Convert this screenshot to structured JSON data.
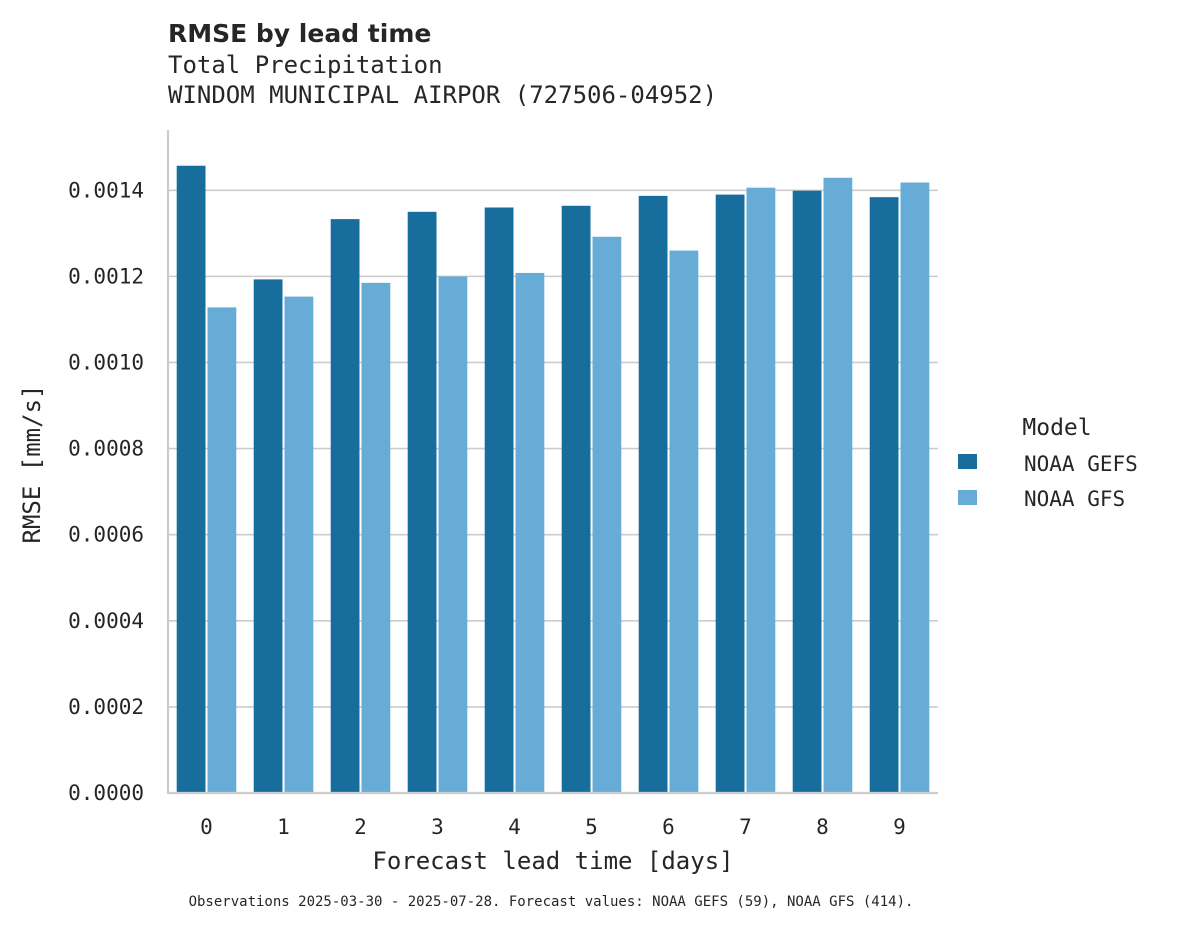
{
  "chart_data": {
    "type": "bar",
    "title": "RMSE by lead time",
    "subtitle_lines": [
      "Total Precipitation",
      "WINDOM MUNICIPAL AIRPOR (727506-04952)"
    ],
    "xlabel": "Forecast lead time [days]",
    "ylabel": "RMSE [mm/s]",
    "categories": [
      "0",
      "1",
      "2",
      "3",
      "4",
      "5",
      "6",
      "7",
      "8",
      "9"
    ],
    "ylim": [
      0,
      0.00154
    ],
    "yticks": [
      0.0,
      0.0002,
      0.0004,
      0.0006,
      0.0008,
      0.001,
      0.0012,
      0.0014
    ],
    "ytick_labels": [
      "0.0000",
      "0.0002",
      "0.0004",
      "0.0006",
      "0.0008",
      "0.0010",
      "0.0012",
      "0.0014"
    ],
    "grid": true,
    "legend": {
      "title": "Model",
      "placement": "right"
    },
    "series": [
      {
        "name": "NOAA GEFS",
        "color": "#176e9d",
        "values": [
          0.001457,
          0.001193,
          0.001333,
          0.00135,
          0.00136,
          0.001364,
          0.001387,
          0.00139,
          0.001399,
          0.001384
        ]
      },
      {
        "name": "NOAA GFS",
        "color": "#66acd6",
        "values": [
          0.001128,
          0.001153,
          0.001185,
          0.0012,
          0.001208,
          0.001292,
          0.00126,
          0.001406,
          0.001429,
          0.001418
        ]
      }
    ],
    "footnote": "Observations 2025-03-30 - 2025-07-28. Forecast values: NOAA GEFS (59), NOAA GFS (414)."
  }
}
